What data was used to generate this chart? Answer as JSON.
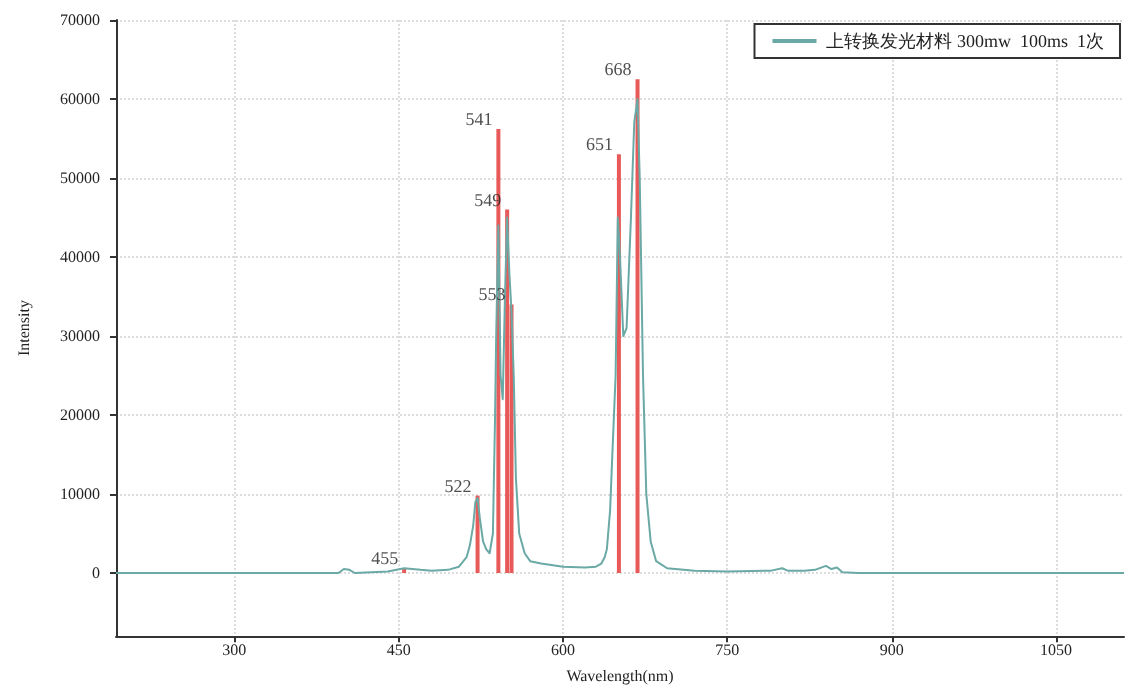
{
  "chart_data": {
    "type": "line",
    "xlabel": "Wavelength(nm)",
    "ylabel": "Intensity",
    "xlim": [
      192,
      1112
    ],
    "xticks": [
      300,
      450,
      600,
      750,
      900,
      1050
    ],
    "ylim": [
      -8000,
      70000
    ],
    "yticks": [
      0,
      10000,
      20000,
      30000,
      40000,
      50000,
      60000,
      70000
    ],
    "grid": true,
    "legend": "top right",
    "marker": "none",
    "line_style": "solid",
    "series": [
      {
        "name": "上转换发光材料 300mw  100ms  1次",
        "color": "#6aa9a5",
        "x": [
          192,
          300,
          395,
          400,
          405,
          410,
          440,
          455,
          470,
          480,
          495,
          505,
          512,
          515,
          518,
          520,
          522,
          524,
          527,
          530,
          533,
          536,
          538,
          539,
          541,
          543,
          545,
          547,
          549,
          551,
          553,
          555,
          557,
          560,
          565,
          570,
          580,
          600,
          620,
          630,
          635,
          638,
          640,
          643,
          645,
          648,
          650,
          652,
          655,
          658,
          660,
          662,
          665,
          668,
          670,
          673,
          676,
          680,
          685,
          695,
          720,
          750,
          790,
          800,
          805,
          820,
          830,
          840,
          845,
          850,
          855,
          870,
          1000,
          1112
        ],
        "values": [
          0,
          0,
          0,
          500,
          400,
          0,
          200,
          600,
          400,
          300,
          400,
          800,
          2000,
          3500,
          6000,
          9000,
          9500,
          7000,
          4000,
          3000,
          2500,
          5000,
          20000,
          30000,
          44000,
          25000,
          22000,
          35000,
          45000,
          38000,
          33000,
          25000,
          12000,
          5000,
          2500,
          1500,
          1200,
          800,
          700,
          800,
          1200,
          2000,
          3000,
          8000,
          15000,
          25000,
          45000,
          40000,
          30000,
          31000,
          38000,
          45000,
          57000,
          60000,
          50000,
          25000,
          10000,
          4000,
          1500,
          600,
          300,
          200,
          300,
          600,
          300,
          300,
          400,
          900,
          500,
          700,
          100,
          0,
          0,
          0
        ]
      },
      {
        "type": "bar",
        "color": "#e85a5a",
        "x": [
          455,
          522,
          541,
          549,
          553,
          651,
          668
        ],
        "values": [
          600,
          9800,
          56200,
          46000,
          34000,
          53000,
          62500
        ]
      }
    ],
    "annotations": [
      {
        "text": "455",
        "x": 455,
        "y": 600
      },
      {
        "text": "522",
        "x": 522,
        "y": 9800
      },
      {
        "text": "541",
        "x": 541,
        "y": 56200
      },
      {
        "text": "549",
        "x": 549,
        "y": 46000
      },
      {
        "text": "553",
        "x": 553,
        "y": 34000
      },
      {
        "text": "651",
        "x": 651,
        "y": 53000
      },
      {
        "text": "668",
        "x": 668,
        "y": 62500
      }
    ]
  }
}
